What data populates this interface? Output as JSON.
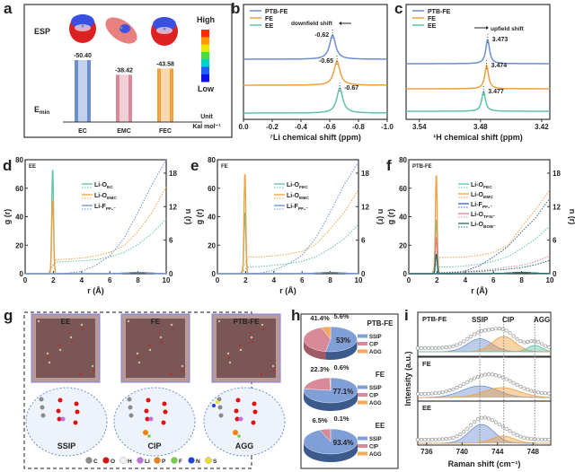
{
  "colors": {
    "ptb_fe": "#6a8fd0",
    "fe": "#f0a040",
    "ee": "#5ec4a0",
    "blue": "#6a8fd0",
    "orange": "#f0a040",
    "green": "#5ec4a0",
    "pink": "#d97f90",
    "teal": "#1f6a6a"
  },
  "panel_labels": [
    "a",
    "b",
    "c",
    "d",
    "e",
    "f",
    "g",
    "h",
    "i"
  ],
  "chart_data": [
    {
      "id": "a",
      "type": "bar",
      "row_label_top": "ESP",
      "row_label_bottom_main": "E",
      "row_label_bottom_sub": "min",
      "categories": [
        "EC",
        "EMC",
        "FEC"
      ],
      "values": [
        -50.4,
        -38.42,
        -43.58
      ],
      "value_labels": [
        "-50.40",
        "-38.42",
        "-43.58"
      ],
      "bar_colors": [
        "#6a8fd0",
        "#d98a9a",
        "#f0a040"
      ],
      "colorbar": {
        "high": "High",
        "low": "Low"
      },
      "unit_line1": "Unit",
      "unit_line2": "Kal mol⁻¹"
    },
    {
      "id": "b",
      "type": "line",
      "xlabel": "⁷Li chemical shift (ppm)",
      "xlim": [
        0.0,
        -1.0
      ],
      "xticks": [
        "0.0",
        "-0.2",
        "-0.4",
        "-0.6",
        "-0.8",
        "-1.0"
      ],
      "xtick_values": [
        0,
        -0.2,
        -0.4,
        -0.6,
        -0.8,
        -1.0
      ],
      "legend": "top-left",
      "annotation": "downfield shift",
      "series": [
        {
          "name": "PTB-FE",
          "peak": -0.62,
          "peak_label": "-0.62"
        },
        {
          "name": "FE",
          "peak": -0.65,
          "peak_label": "-0.65"
        },
        {
          "name": "EE",
          "peak": -0.67,
          "peak_label": "-0.67"
        }
      ]
    },
    {
      "id": "c",
      "type": "line",
      "xlabel": "¹H chemical shift (ppm)",
      "xlim": [
        3.553,
        3.412
      ],
      "xticks": [
        "3.54",
        "3.48",
        "3.42"
      ],
      "xtick_values": [
        3.54,
        3.48,
        3.42
      ],
      "legend": "top-left",
      "annotation": "upfield shift",
      "series": [
        {
          "name": "PTB-FE",
          "peak": 3.473,
          "peak_label": "3.473"
        },
        {
          "name": "FE",
          "peak": 3.474,
          "peak_label": "3.474"
        },
        {
          "name": "EE",
          "peak": 3.477,
          "peak_label": "3.477"
        }
      ]
    },
    {
      "id": "d",
      "type": "line",
      "title": "EE",
      "xlabel": "r (Å)",
      "ylabel": "g (r)",
      "y2label": "n (r)",
      "xlim": [
        0,
        10
      ],
      "ylim": [
        0,
        80
      ],
      "y2lim": [
        0,
        20.4
      ],
      "xticks": [
        "0",
        "2",
        "4",
        "6",
        "8",
        "10"
      ],
      "yticks": [
        "0",
        "20",
        "40",
        "60",
        "80"
      ],
      "y2ticks": [
        "0",
        "6",
        "12",
        "18"
      ],
      "r_grid": [
        1.6,
        2.2,
        3,
        4,
        5,
        6,
        7,
        8,
        9,
        10
      ],
      "series": [
        {
          "main": "Li-O",
          "sub": "EC",
          "color": "#5ec4a0",
          "g_peak": 75,
          "n": [
            0,
            2.1,
            2.2,
            2.3,
            2.5,
            3.0,
            3.8,
            5.2,
            7.2,
            9.8
          ]
        },
        {
          "main": "Li-O",
          "sub": "EMC",
          "color": "#f0a040",
          "g_peak": 53,
          "n": [
            0,
            2.5,
            2.6,
            2.8,
            3.2,
            3.8,
            5.0,
            7.5,
            11,
            15.5
          ]
        },
        {
          "main": "Li-F",
          "sub": "PF₆⁻",
          "color": "#6a8fd0",
          "g_peak": 0,
          "n": [
            0,
            0,
            0.1,
            0.4,
            1.5,
            3.2,
            6.3,
            11,
            16,
            21
          ]
        }
      ]
    },
    {
      "id": "e",
      "type": "line",
      "title": "FE",
      "xlabel": "r (Å)",
      "ylabel": "g (r)",
      "y2label": "n (r)",
      "xlim": [
        0,
        10
      ],
      "ylim": [
        0,
        80
      ],
      "y2lim": [
        0,
        20.4
      ],
      "xticks": [
        "0",
        "2",
        "4",
        "6",
        "8",
        "10"
      ],
      "yticks": [
        "0",
        "20",
        "40",
        "60",
        "80"
      ],
      "y2ticks": [
        "0",
        "6",
        "12",
        "18"
      ],
      "r_grid": [
        1.6,
        2.2,
        3,
        4,
        5,
        6,
        7,
        8,
        9,
        10
      ],
      "series": [
        {
          "main": "Li-O",
          "sub": "FEC",
          "color": "#5ec4a0",
          "g_peak": 44,
          "n": [
            0,
            1.2,
            1.3,
            1.5,
            1.8,
            2.2,
            3.0,
            4.5,
            6.3,
            8.8
          ]
        },
        {
          "main": "Li-O",
          "sub": "EMC",
          "color": "#f0a040",
          "g_peak": 72,
          "n": [
            0,
            3.0,
            3.0,
            3.2,
            3.5,
            4.0,
            5.3,
            8.0,
            11,
            15
          ]
        },
        {
          "main": "Li-F",
          "sub": "PF₆⁻",
          "color": "#6a8fd0",
          "g_peak": 0,
          "n": [
            0,
            0,
            0.1,
            0.6,
            1.7,
            3.3,
            6.5,
            11,
            16,
            20
          ]
        }
      ]
    },
    {
      "id": "f",
      "type": "line",
      "title": "PTB-FE",
      "xlabel": "r (Å)",
      "ylabel": "g (r)",
      "y2label": "n (r)",
      "xlim": [
        0,
        10
      ],
      "ylim": [
        0,
        80
      ],
      "y2lim": [
        0,
        20.4
      ],
      "xticks": [
        "0",
        "2",
        "4",
        "6",
        "8",
        "10"
      ],
      "yticks": [
        "0",
        "20",
        "40",
        "60",
        "80"
      ],
      "y2ticks": [
        "0",
        "6",
        "12",
        "18"
      ],
      "r_grid": [
        1.6,
        2.2,
        3,
        4,
        5,
        6,
        7,
        8,
        9,
        10
      ],
      "series": [
        {
          "main": "Li-O",
          "sub": "FEC",
          "color": "#5ec4a0",
          "g_peak": 39,
          "n": [
            0,
            1.2,
            1.2,
            1.4,
            1.7,
            2.2,
            3.0,
            4.5,
            6.3,
            8.5
          ]
        },
        {
          "main": "Li-O",
          "sub": "EMC",
          "color": "#f0a040",
          "g_peak": 71,
          "n": [
            0,
            2.9,
            2.9,
            3.0,
            3.3,
            3.8,
            5.0,
            8.3,
            11.5,
            15
          ]
        },
        {
          "main": "Li-F",
          "sub": "PF₆⁻",
          "color": "#3a5fb0",
          "g_peak": 0,
          "n": [
            0,
            0,
            0.1,
            0.5,
            1.4,
            3.0,
            4.8,
            7.5,
            10,
            13.5
          ]
        },
        {
          "main": "Li-O",
          "sub": "TFSI⁻",
          "color": "#d97f90",
          "g_peak": 26,
          "n": [
            0,
            0.2,
            0.3,
            0.4,
            0.6,
            0.8,
            1.2,
            1.5,
            2.2,
            3.2
          ]
        },
        {
          "main": "Li-O",
          "sub": "BOB⁻",
          "color": "#1f6a6a",
          "g_peak": 14,
          "n": [
            0,
            0.1,
            0.2,
            0.3,
            0.4,
            0.6,
            0.8,
            1.1,
            1.6,
            2.4
          ]
        }
      ]
    },
    {
      "id": "h",
      "type": "pie",
      "legend_labels": [
        "SSIP",
        "CIP",
        "AGG"
      ],
      "slice_colors": [
        "#7f9fd6",
        "#d98a9a",
        "#f2aa5a"
      ],
      "pies": [
        {
          "name": "PTB-FE",
          "values": [
            53,
            41.4,
            5.6
          ],
          "labels": [
            "53%",
            "41.4%",
            "5.6%"
          ]
        },
        {
          "name": "FE",
          "values": [
            77.1,
            22.3,
            0.6
          ],
          "labels": [
            "77.1%",
            "22.3%",
            "0.6%"
          ]
        },
        {
          "name": "EE",
          "values": [
            93.4,
            6.5,
            0.1
          ],
          "labels": [
            "93.4%",
            "6.5%",
            "0.1%"
          ]
        }
      ]
    },
    {
      "id": "i",
      "type": "area",
      "xlabel": "Raman shift (cm⁻¹)",
      "ylabel": "Intensity (a.u.)",
      "xlim": [
        735,
        750
      ],
      "xticks": [
        "736",
        "740",
        "744",
        "748"
      ],
      "xtick_values": [
        736,
        740,
        744,
        748
      ],
      "component_labels": [
        "SSIP",
        "CIP",
        "AGG"
      ],
      "reference_lines": [
        742,
        744.7,
        748.2
      ],
      "panels": [
        {
          "name": "PTB-FE",
          "components": [
            {
              "label": "SSIP",
              "center": 742,
              "rel": 0.85
            },
            {
              "label": "CIP",
              "center": 744.7,
              "rel": 1.0
            },
            {
              "label": "AGG",
              "center": 748.2,
              "rel": 0.42
            }
          ]
        },
        {
          "name": "FE",
          "components": [
            {
              "label": "SSIP",
              "center": 742,
              "rel": 1.0
            },
            {
              "label": "CIP",
              "center": 744.5,
              "rel": 0.85
            }
          ]
        },
        {
          "name": "EE",
          "components": [
            {
              "label": "SSIP",
              "center": 742.2,
              "rel": 1.0
            },
            {
              "label": "CIP",
              "center": 744.6,
              "rel": 0.38
            }
          ]
        }
      ]
    }
  ],
  "panel_g": {
    "boxes": [
      "EE",
      "FE",
      "PTB-FE"
    ],
    "clusters": [
      "SSIP",
      "CIP",
      "AGG"
    ],
    "atom_legend": [
      {
        "symbol": "C",
        "color": "#8a8a8a"
      },
      {
        "symbol": "O",
        "color": "#e01010"
      },
      {
        "symbol": "H",
        "color": "#f2f2f2"
      },
      {
        "symbol": "Li",
        "color": "#c070e0"
      },
      {
        "symbol": "P",
        "color": "#f08010"
      },
      {
        "symbol": "F",
        "color": "#70d040"
      },
      {
        "symbol": "N",
        "color": "#2040e0"
      },
      {
        "symbol": "S",
        "color": "#f0e020"
      }
    ]
  }
}
